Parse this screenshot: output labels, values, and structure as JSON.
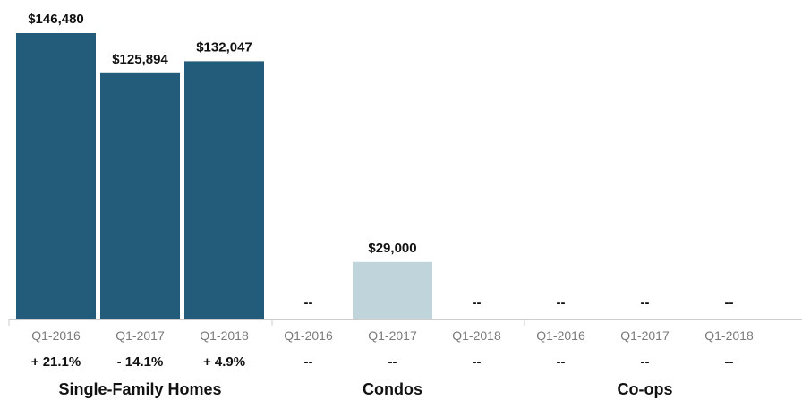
{
  "chart_data": {
    "type": "bar",
    "ylim": [
      0,
      150000
    ],
    "colors": {
      "single_family": "#235b7a",
      "condos": "#c0d4dc",
      "axis": "#9a9a9a",
      "group_divider": "#cccccc"
    },
    "groups": [
      {
        "name": "Single-Family Homes",
        "color": "#235b7a",
        "bars": [
          {
            "period": "Q1-2016",
            "value": 146480,
            "value_label": "$146,480",
            "change": "+ 21.1%"
          },
          {
            "period": "Q1-2017",
            "value": 125894,
            "value_label": "$125,894",
            "change": "- 14.1%"
          },
          {
            "period": "Q1-2018",
            "value": 132047,
            "value_label": "$132,047",
            "change": "+ 4.9%"
          }
        ]
      },
      {
        "name": "Condos",
        "color": "#c0d4dc",
        "bars": [
          {
            "period": "Q1-2016",
            "value": null,
            "value_label": "--",
            "change": "--"
          },
          {
            "period": "Q1-2017",
            "value": 29000,
            "value_label": "$29,000",
            "change": "--"
          },
          {
            "period": "Q1-2018",
            "value": null,
            "value_label": "--",
            "change": "--"
          }
        ]
      },
      {
        "name": "Co-ops",
        "color": "#c0d4dc",
        "bars": [
          {
            "period": "Q1-2016",
            "value": null,
            "value_label": "--",
            "change": "--"
          },
          {
            "period": "Q1-2017",
            "value": null,
            "value_label": "--",
            "change": "--"
          },
          {
            "period": "Q1-2018",
            "value": null,
            "value_label": "--",
            "change": "--"
          }
        ]
      }
    ]
  }
}
